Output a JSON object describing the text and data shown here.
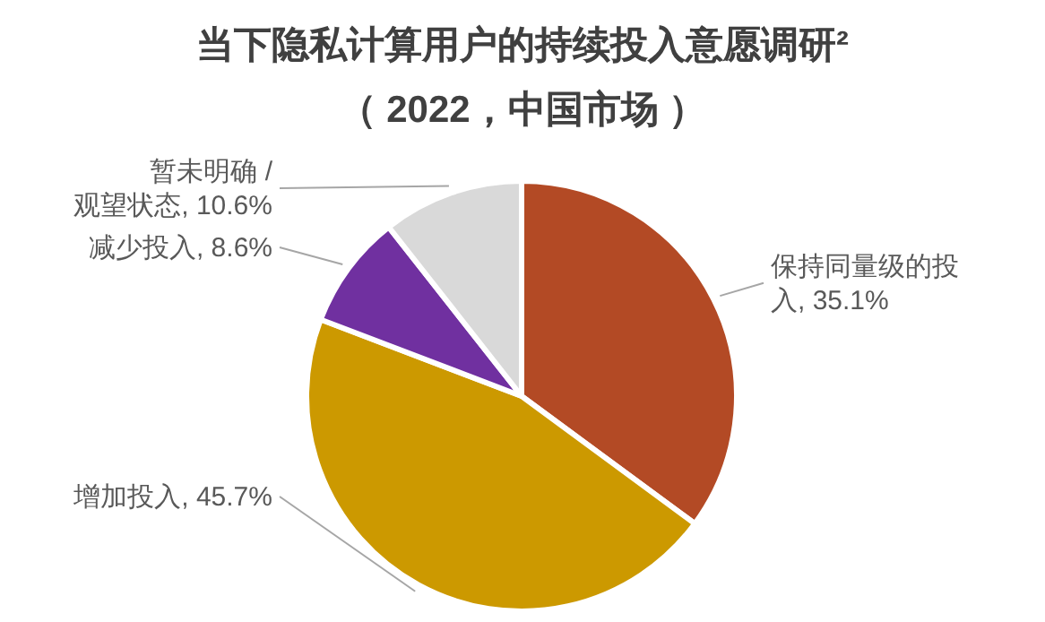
{
  "chart_data": {
    "type": "pie",
    "title": "当下隐私计算用户的持续投入意愿调研²",
    "subtitle": "（ 2022，中国市场 ）",
    "categories": [
      "保持同量级的投入",
      "增加投入",
      "减少投入",
      "暂未明确 / 观望状态"
    ],
    "values": [
      35.1,
      45.7,
      8.6,
      10.6
    ],
    "value_labels": [
      "35.1%",
      "45.7%",
      "8.6%",
      "10.6%"
    ],
    "colors": [
      "#b34a25",
      "#cc9900",
      "#7030a0",
      "#d9d9d9"
    ]
  }
}
